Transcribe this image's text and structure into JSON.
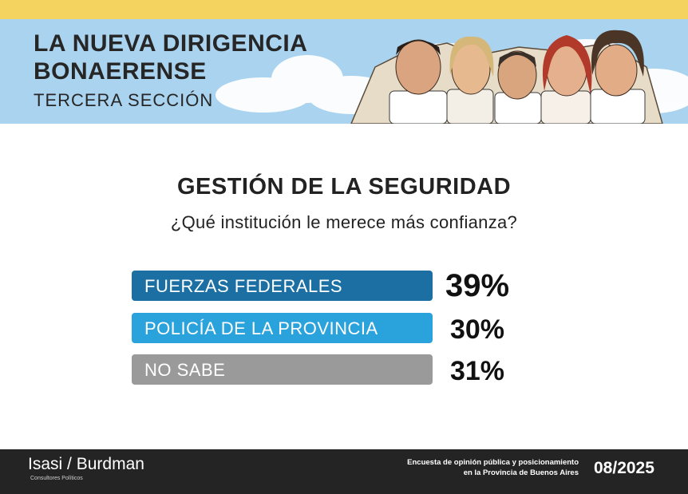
{
  "header": {
    "title_line1": "LA NUEVA DIRIGENCIA",
    "title_line2": "BONAERENSE",
    "subtitle": "TERCERA SECCIÓN"
  },
  "chart_data": {
    "type": "bar",
    "title": "GESTIÓN DE LA SEGURIDAD",
    "subtitle": "¿Qué institución le merece más confianza?",
    "categories": [
      "FUERZAS FEDERALES",
      "POLICÍA DE LA PROVINCIA",
      "NO SABE"
    ],
    "values": [
      39,
      30,
      31
    ],
    "value_labels": [
      "39%",
      "30%",
      "31%"
    ],
    "colors": [
      "#1b6fa2",
      "#2aa2dc",
      "#9a9a9a"
    ]
  },
  "footer": {
    "brand_left": "Isasi",
    "brand_sep": "/",
    "brand_right": "Burdman",
    "brand_sub": "Consultores Políticos",
    "desc_line1": "Encuesta de opinión pública y posicionamiento",
    "desc_line2": "en la Provincia de Buenos Aires",
    "date": "08/2025"
  },
  "colors": {
    "top_band": "#f4d35e",
    "banner_bg": "#a9d3ee",
    "footer_bg": "#242424"
  },
  "icons": [
    "cloud-illustration",
    "candidate-portraits-illustration"
  ]
}
